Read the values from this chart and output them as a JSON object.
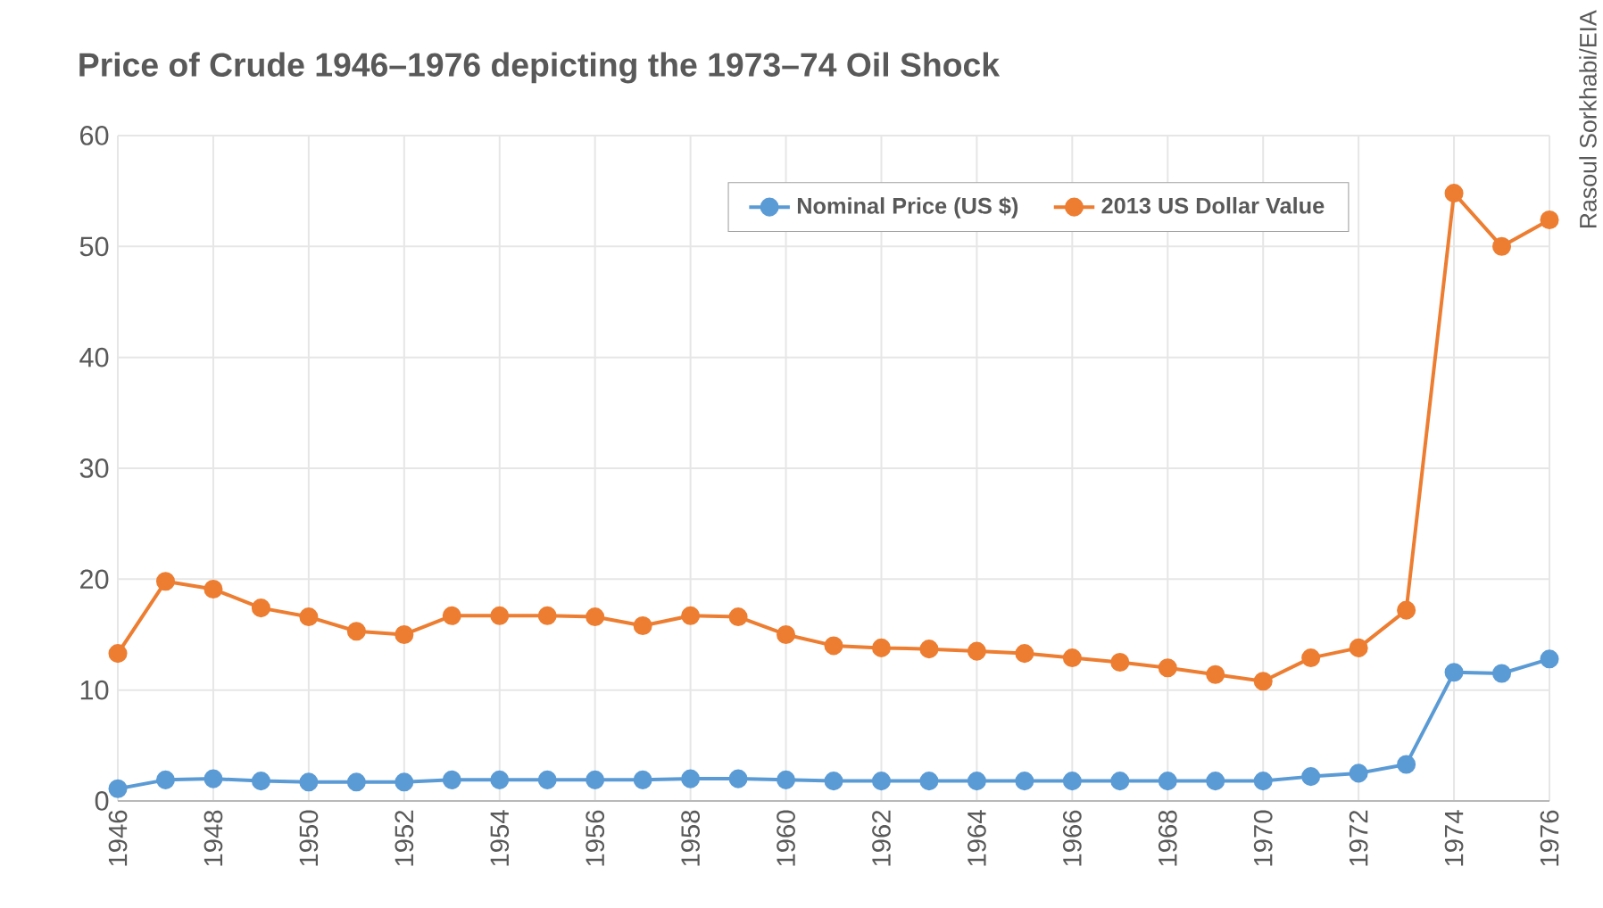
{
  "chart_data": {
    "type": "line",
    "title": "Price of Crude 1946–1976 depicting the 1973–74 Oil Shock",
    "x": [
      1946,
      1947,
      1948,
      1949,
      1950,
      1951,
      1952,
      1953,
      1954,
      1955,
      1956,
      1957,
      1958,
      1959,
      1960,
      1961,
      1962,
      1963,
      1964,
      1965,
      1966,
      1967,
      1968,
      1969,
      1970,
      1971,
      1972,
      1973,
      1974,
      1975,
      1976
    ],
    "series": [
      {
        "name": "Nominal Price (US $)",
        "color": "#5b9bd5",
        "values": [
          1.1,
          1.9,
          2.0,
          1.8,
          1.7,
          1.7,
          1.7,
          1.9,
          1.9,
          1.9,
          1.9,
          1.9,
          2.0,
          2.0,
          1.9,
          1.8,
          1.8,
          1.8,
          1.8,
          1.8,
          1.8,
          1.8,
          1.8,
          1.8,
          1.8,
          2.2,
          2.5,
          3.3,
          11.6,
          11.5,
          12.8
        ]
      },
      {
        "name": "2013 US Dollar Value",
        "color": "#ed7d31",
        "values": [
          13.3,
          19.8,
          19.1,
          17.4,
          16.6,
          15.3,
          15.0,
          16.7,
          16.7,
          16.7,
          16.6,
          15.8,
          16.7,
          16.6,
          15.0,
          14.0,
          13.8,
          13.7,
          13.5,
          13.3,
          12.9,
          12.5,
          12.0,
          11.4,
          10.8,
          12.9,
          13.8,
          17.2,
          54.8,
          50.0,
          52.4
        ]
      }
    ],
    "xlim": [
      1946,
      1976
    ],
    "xticks": [
      1946,
      1948,
      1950,
      1952,
      1954,
      1956,
      1958,
      1960,
      1962,
      1964,
      1966,
      1968,
      1970,
      1972,
      1974,
      1976
    ],
    "ylim": [
      0,
      60
    ],
    "yticks": [
      0,
      10,
      20,
      30,
      40,
      50,
      60
    ],
    "grid": true,
    "legend": "top right",
    "marker": "circle",
    "line_style": "solid",
    "annotations": [
      "Rasoul Sorkhabi/EIA"
    ]
  }
}
